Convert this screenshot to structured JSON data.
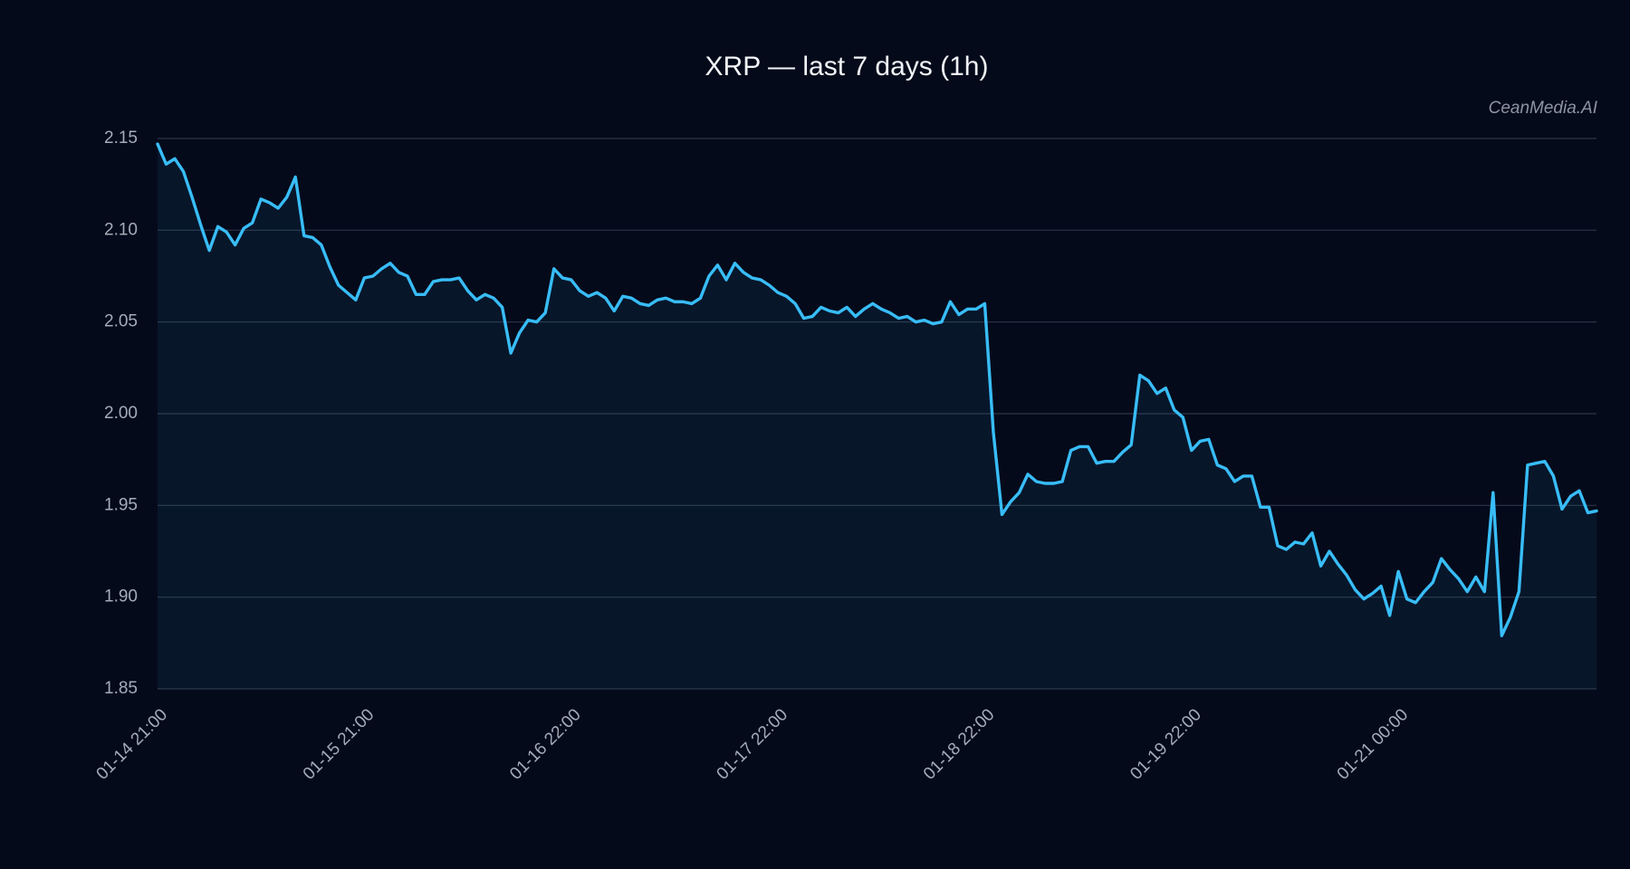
{
  "chart_data": {
    "type": "line",
    "title": "XRP — last 7 days (1h)",
    "watermark": "CeanMedia.AI",
    "color": "#38bdf8",
    "area": true,
    "grid": true,
    "ylim": [
      1.85,
      2.15
    ],
    "yticks": [
      1.85,
      {
        "value": 1.9,
        "label": "1.90"
      },
      1.95,
      {
        "value": 2.0,
        "label": "2.00"
      },
      2.05,
      {
        "value": 2.1,
        "label": "2.10"
      },
      2.15
    ],
    "categories": [
      "01-14 21:00",
      null,
      null,
      null,
      null,
      null,
      null,
      null,
      null,
      null,
      null,
      null,
      null,
      null,
      null,
      null,
      null,
      null,
      null,
      null,
      null,
      null,
      null,
      null,
      "01-15 21:00",
      null,
      null,
      null,
      null,
      null,
      null,
      null,
      null,
      null,
      null,
      null,
      null,
      null,
      null,
      null,
      null,
      null,
      null,
      null,
      null,
      null,
      null,
      null,
      "01-16 22:00",
      null,
      null,
      null,
      null,
      null,
      null,
      null,
      null,
      null,
      null,
      null,
      null,
      null,
      null,
      null,
      null,
      null,
      null,
      null,
      null,
      null,
      null,
      null,
      "01-17 22:00",
      null,
      null,
      null,
      null,
      null,
      null,
      null,
      null,
      null,
      null,
      null,
      null,
      null,
      null,
      null,
      null,
      null,
      null,
      null,
      null,
      null,
      null,
      null,
      "01-18 22:00",
      null,
      null,
      null,
      null,
      null,
      null,
      null,
      null,
      null,
      null,
      null,
      null,
      null,
      null,
      null,
      null,
      null,
      null,
      null,
      null,
      null,
      null,
      null,
      "01-19 22:00",
      null,
      null,
      null,
      null,
      null,
      null,
      null,
      null,
      null,
      null,
      null,
      null,
      null,
      null,
      null,
      null,
      null,
      null,
      null,
      null,
      null,
      null,
      null,
      "01-21 00:00",
      null,
      null,
      null,
      null,
      null,
      null,
      null,
      null,
      null,
      null,
      null,
      null,
      null,
      null,
      null,
      null,
      null,
      null,
      null,
      null,
      null,
      null,
      null
    ],
    "values": [
      2.147,
      2.136,
      2.139,
      2.132,
      2.118,
      2.103,
      2.089,
      2.102,
      2.099,
      2.092,
      2.101,
      2.104,
      2.117,
      2.115,
      2.112,
      2.118,
      2.129,
      2.097,
      2.096,
      2.092,
      2.08,
      2.07,
      2.066,
      2.062,
      2.074,
      2.075,
      2.079,
      2.082,
      2.077,
      2.075,
      2.065,
      2.065,
      2.072,
      2.073,
      2.073,
      2.074,
      2.067,
      2.062,
      2.065,
      2.063,
      2.058,
      2.033,
      2.044,
      2.051,
      2.05,
      2.055,
      2.079,
      2.074,
      2.073,
      2.067,
      2.064,
      2.066,
      2.063,
      2.056,
      2.064,
      2.063,
      2.06,
      2.059,
      2.062,
      2.063,
      2.061,
      2.061,
      2.06,
      2.063,
      2.075,
      2.081,
      2.073,
      2.082,
      2.077,
      2.074,
      2.073,
      2.07,
      2.066,
      2.064,
      2.06,
      2.052,
      2.053,
      2.058,
      2.056,
      2.055,
      2.058,
      2.053,
      2.057,
      2.06,
      2.057,
      2.055,
      2.052,
      2.053,
      2.05,
      2.051,
      2.049,
      2.05,
      2.061,
      2.054,
      2.057,
      2.057,
      2.06,
      1.99,
      1.945,
      1.952,
      1.957,
      1.967,
      1.963,
      1.962,
      1.962,
      1.963,
      1.98,
      1.982,
      1.982,
      1.973,
      1.974,
      1.974,
      1.979,
      1.983,
      2.021,
      2.018,
      2.011,
      2.014,
      2.002,
      1.998,
      1.98,
      1.985,
      1.986,
      1.972,
      1.97,
      1.963,
      1.966,
      1.966,
      1.949,
      1.949,
      1.928,
      1.926,
      1.93,
      1.929,
      1.935,
      1.917,
      1.925,
      1.918,
      1.912,
      1.904,
      1.899,
      1.902,
      1.906,
      1.89,
      1.914,
      1.899,
      1.897,
      1.903,
      1.908,
      1.921,
      1.915,
      1.91,
      1.903,
      1.911,
      1.903,
      1.957,
      1.879,
      1.889,
      1.903,
      1.972,
      1.973,
      1.974,
      1.966,
      1.948,
      1.955,
      1.958,
      1.946,
      1.947
    ]
  }
}
